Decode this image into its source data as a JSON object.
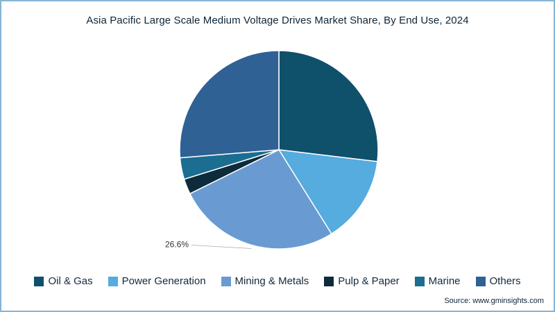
{
  "chart_data": {
    "type": "pie",
    "title": "Asia Pacific Large Scale Medium Voltage Drives Market Share, By End Use, 2024",
    "start_angle_deg": 0,
    "direction": "clockwise",
    "legend_position": "bottom",
    "slices": [
      {
        "label": "Oil & Gas",
        "value": 26.9,
        "color": "#0f506a"
      },
      {
        "label": "Power Generation",
        "value": 14.2,
        "color": "#56abdf"
      },
      {
        "label": "Mining & Metals",
        "value": 26.6,
        "color": "#699bd2",
        "data_label": "26.6%"
      },
      {
        "label": "Pulp & Paper",
        "value": 2.5,
        "color": "#0d2b3b"
      },
      {
        "label": "Marine",
        "value": 3.5,
        "color": "#1b6d92"
      },
      {
        "label": "Others",
        "value": 26.3,
        "color": "#2f6195"
      }
    ]
  },
  "source": "Source: www.gminsights.com"
}
